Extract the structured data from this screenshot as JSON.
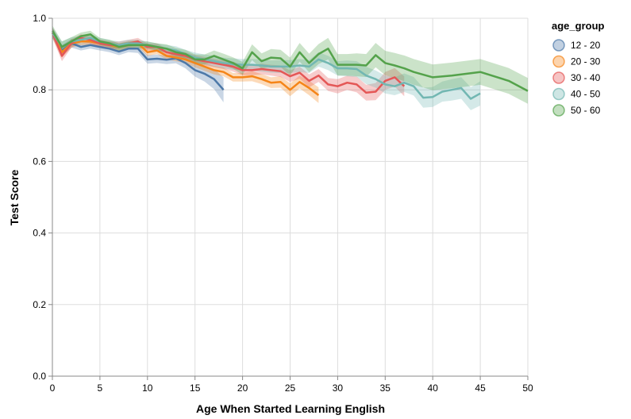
{
  "chart_data": {
    "type": "line",
    "xlabel": "Age When Started Learning English",
    "ylabel": "Test Score",
    "xlim": [
      0,
      50
    ],
    "ylim": [
      0,
      1
    ],
    "x_ticks": [
      0,
      5,
      10,
      15,
      20,
      25,
      30,
      35,
      40,
      45,
      50
    ],
    "y_ticks": [
      0.0,
      0.2,
      0.4,
      0.6,
      0.8,
      1.0
    ],
    "x_tick_labels": [
      "0",
      "5",
      "10",
      "15",
      "20",
      "25",
      "30",
      "35",
      "40",
      "45",
      "50"
    ],
    "y_tick_labels": [
      "0.0",
      "0.2",
      "0.4",
      "0.6",
      "0.8",
      "1.0"
    ],
    "grid": true,
    "legend": {
      "title": "age_group",
      "position": "right"
    },
    "band": "confidence interval (shaded)",
    "series": [
      {
        "name": "12 - 20",
        "color": "#4c78a8",
        "x": [
          0,
          1,
          2,
          3,
          4,
          5,
          6,
          7,
          8,
          9,
          10,
          11,
          12,
          13,
          14,
          15,
          16,
          17,
          18
        ],
        "y": [
          0.96,
          0.91,
          0.93,
          0.92,
          0.925,
          0.92,
          0.915,
          0.907,
          0.915,
          0.915,
          0.885,
          0.887,
          0.884,
          0.888,
          0.875,
          0.855,
          0.845,
          0.83,
          0.8
        ],
        "band": [
          0.015,
          0.015,
          0.012,
          0.01,
          0.01,
          0.01,
          0.01,
          0.01,
          0.01,
          0.012,
          0.012,
          0.012,
          0.012,
          0.014,
          0.015,
          0.018,
          0.022,
          0.028,
          0.035
        ]
      },
      {
        "name": "20 - 30",
        "color": "#f58518",
        "x": [
          0,
          1,
          2,
          3,
          4,
          5,
          6,
          7,
          8,
          9,
          10,
          11,
          12,
          13,
          14,
          15,
          16,
          17,
          18,
          19,
          20,
          21,
          22,
          23,
          24,
          25,
          26,
          27,
          28
        ],
        "y": [
          0.96,
          0.905,
          0.93,
          0.935,
          0.935,
          0.93,
          0.925,
          0.92,
          0.925,
          0.93,
          0.905,
          0.91,
          0.895,
          0.89,
          0.885,
          0.875,
          0.865,
          0.855,
          0.85,
          0.835,
          0.835,
          0.838,
          0.83,
          0.82,
          0.822,
          0.8,
          0.822,
          0.805,
          0.785
        ],
        "band": [
          0.015,
          0.015,
          0.012,
          0.01,
          0.01,
          0.01,
          0.01,
          0.01,
          0.01,
          0.01,
          0.01,
          0.01,
          0.01,
          0.01,
          0.01,
          0.012,
          0.012,
          0.012,
          0.012,
          0.012,
          0.012,
          0.014,
          0.014,
          0.015,
          0.016,
          0.018,
          0.018,
          0.02,
          0.022
        ]
      },
      {
        "name": "30 - 40",
        "color": "#e45756",
        "x": [
          0,
          1,
          2,
          3,
          4,
          5,
          6,
          7,
          8,
          9,
          10,
          11,
          12,
          13,
          14,
          15,
          16,
          17,
          18,
          19,
          20,
          21,
          22,
          23,
          24,
          25,
          26,
          27,
          28,
          29,
          30,
          31,
          32,
          33,
          34,
          35,
          36,
          37
        ],
        "y": [
          0.96,
          0.895,
          0.93,
          0.945,
          0.94,
          0.93,
          0.925,
          0.925,
          0.93,
          0.935,
          0.92,
          0.92,
          0.905,
          0.9,
          0.895,
          0.885,
          0.88,
          0.875,
          0.87,
          0.865,
          0.855,
          0.855,
          0.858,
          0.855,
          0.852,
          0.838,
          0.848,
          0.825,
          0.84,
          0.815,
          0.81,
          0.82,
          0.815,
          0.792,
          0.795,
          0.825,
          0.835,
          0.81
        ],
        "band": [
          0.015,
          0.015,
          0.012,
          0.01,
          0.01,
          0.01,
          0.01,
          0.01,
          0.01,
          0.01,
          0.01,
          0.01,
          0.01,
          0.01,
          0.01,
          0.012,
          0.012,
          0.012,
          0.012,
          0.014,
          0.014,
          0.014,
          0.015,
          0.015,
          0.016,
          0.016,
          0.017,
          0.018,
          0.018,
          0.018,
          0.02,
          0.02,
          0.022,
          0.022,
          0.024,
          0.025,
          0.026,
          0.028
        ]
      },
      {
        "name": "40 - 50",
        "color": "#72b7b2",
        "x": [
          0,
          1,
          2,
          3,
          4,
          5,
          6,
          7,
          8,
          9,
          10,
          11,
          12,
          13,
          14,
          15,
          16,
          17,
          18,
          19,
          20,
          21,
          22,
          23,
          24,
          25,
          26,
          27,
          28,
          29,
          30,
          31,
          32,
          33,
          34,
          35,
          36,
          37,
          38,
          39,
          40,
          41,
          42,
          43,
          44,
          45
        ],
        "y": [
          0.96,
          0.92,
          0.935,
          0.94,
          0.945,
          0.935,
          0.93,
          0.925,
          0.93,
          0.93,
          0.925,
          0.92,
          0.915,
          0.91,
          0.9,
          0.89,
          0.885,
          0.88,
          0.875,
          0.872,
          0.87,
          0.87,
          0.868,
          0.865,
          0.865,
          0.865,
          0.868,
          0.865,
          0.885,
          0.875,
          0.86,
          0.86,
          0.858,
          0.84,
          0.83,
          0.815,
          0.81,
          0.82,
          0.81,
          0.778,
          0.78,
          0.795,
          0.8,
          0.805,
          0.775,
          0.79
        ],
        "band": [
          0.015,
          0.015,
          0.012,
          0.01,
          0.01,
          0.01,
          0.01,
          0.01,
          0.01,
          0.01,
          0.01,
          0.01,
          0.01,
          0.012,
          0.012,
          0.014,
          0.014,
          0.015,
          0.015,
          0.016,
          0.016,
          0.016,
          0.017,
          0.017,
          0.018,
          0.018,
          0.018,
          0.018,
          0.02,
          0.02,
          0.02,
          0.022,
          0.022,
          0.024,
          0.024,
          0.025,
          0.025,
          0.026,
          0.026,
          0.028,
          0.028,
          0.028,
          0.03,
          0.03,
          0.032,
          0.034
        ]
      },
      {
        "name": "50 - 60",
        "color": "#54a24b",
        "x": [
          0,
          1,
          2,
          3,
          4,
          5,
          6,
          7,
          8,
          9,
          10,
          11,
          12,
          13,
          14,
          15,
          16,
          17,
          18,
          19,
          20,
          21,
          22,
          23,
          24,
          25,
          26,
          27,
          28,
          29,
          30,
          31,
          32,
          33,
          34,
          35,
          36,
          37,
          38,
          40,
          42,
          45,
          48,
          50
        ],
        "y": [
          0.965,
          0.92,
          0.935,
          0.95,
          0.955,
          0.935,
          0.93,
          0.92,
          0.925,
          0.925,
          0.925,
          0.92,
          0.915,
          0.905,
          0.9,
          0.885,
          0.885,
          0.895,
          0.885,
          0.875,
          0.86,
          0.905,
          0.88,
          0.89,
          0.888,
          0.865,
          0.905,
          0.875,
          0.9,
          0.915,
          0.87,
          0.87,
          0.87,
          0.868,
          0.897,
          0.875,
          0.868,
          0.86,
          0.85,
          0.835,
          0.84,
          0.85,
          0.825,
          0.797
        ],
        "band": [
          0.015,
          0.015,
          0.012,
          0.01,
          0.01,
          0.01,
          0.01,
          0.01,
          0.01,
          0.01,
          0.01,
          0.01,
          0.012,
          0.012,
          0.012,
          0.014,
          0.014,
          0.015,
          0.016,
          0.016,
          0.018,
          0.022,
          0.022,
          0.024,
          0.024,
          0.025,
          0.026,
          0.026,
          0.028,
          0.03,
          0.03,
          0.03,
          0.032,
          0.032,
          0.034,
          0.034,
          0.035,
          0.036,
          0.036,
          0.036,
          0.036,
          0.036,
          0.036,
          0.036
        ]
      }
    ]
  }
}
